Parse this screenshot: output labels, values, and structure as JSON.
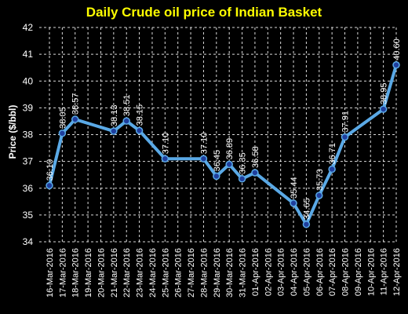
{
  "chart_data": {
    "type": "line",
    "title": "Daily Crude oil price of Indian Basket",
    "ylabel": "Price ($/bbl)",
    "xlabel": "",
    "ylim": [
      34,
      42
    ],
    "yticks": [
      "34",
      "35",
      "36",
      "37",
      "38",
      "39",
      "40",
      "41",
      "42"
    ],
    "grid": true,
    "legend": "none",
    "categories": [
      "16-Mar-2016",
      "17-Mar-2016",
      "18-Mar-2016",
      "19-Mar-2016",
      "20-Mar-2016",
      "21-Mar-2016",
      "22-Mar-2016",
      "23-Mar-2016",
      "24-Mar-2016",
      "25-Mar-2016",
      "26-Mar-2016",
      "27-Mar-2016",
      "28-Mar-2016",
      "29-Mar-2016",
      "30-Mar-2016",
      "31-Mar-2016",
      "01-Apr-2016",
      "02-Apr-2016",
      "03-Apr-2016",
      "04-Apr-2016",
      "05-Apr-2016",
      "06-Apr-2016",
      "07-Apr-2016",
      "08-Apr-2016",
      "09-Apr-2016",
      "10-Apr-2016",
      "11-Apr-2016",
      "12-Apr-2016"
    ],
    "series": [
      {
        "points": [
          {
            "x": "16-Mar-2016",
            "y": 36.1,
            "label": "36.10"
          },
          {
            "x": "17-Mar-2016",
            "y": 38.05,
            "label": "38.05"
          },
          {
            "x": "18-Mar-2016",
            "y": 38.57,
            "label": "38.57"
          },
          {
            "x": "21-Mar-2016",
            "y": 38.13,
            "label": "38.13"
          },
          {
            "x": "22-Mar-2016",
            "y": 38.51,
            "label": "38.51"
          },
          {
            "x": "23-Mar-2016",
            "y": 38.15,
            "label": "38.15"
          },
          {
            "x": "25-Mar-2016",
            "y": 37.1,
            "label": "37.10"
          },
          {
            "x": "28-Mar-2016",
            "y": 37.1,
            "label": "37.10"
          },
          {
            "x": "29-Mar-2016",
            "y": 36.45,
            "label": "36.45"
          },
          {
            "x": "30-Mar-2016",
            "y": 36.89,
            "label": "36.89"
          },
          {
            "x": "31-Mar-2016",
            "y": 36.35,
            "label": "36.35"
          },
          {
            "x": "01-Apr-2016",
            "y": 36.58,
            "label": "36.58"
          },
          {
            "x": "04-Apr-2016",
            "y": 35.44,
            "label": "35.44"
          },
          {
            "x": "05-Apr-2016",
            "y": 34.65,
            "label": "34.65"
          },
          {
            "x": "06-Apr-2016",
            "y": 35.73,
            "label": "35.73"
          },
          {
            "x": "07-Apr-2016",
            "y": 36.71,
            "label": "36.71"
          },
          {
            "x": "08-Apr-2016",
            "y": 37.91,
            "label": "37.91"
          },
          {
            "x": "11-Apr-2016",
            "y": 38.95,
            "label": "38.95"
          },
          {
            "x": "12-Apr-2016",
            "y": 40.6,
            "label": "40.60"
          }
        ]
      }
    ],
    "colors": {
      "background": "#000000",
      "title": "#ffff00",
      "line": "#5aa9e6",
      "marker": "#1f3f9e",
      "text": "#ffffff",
      "grid": "#ffffff"
    }
  }
}
